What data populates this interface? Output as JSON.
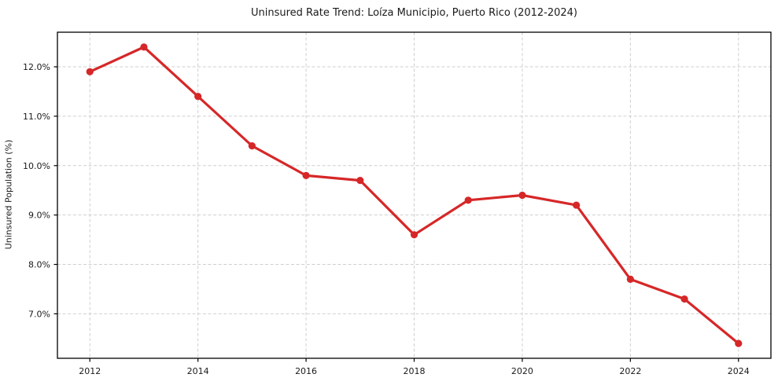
{
  "figure": {
    "background_color": "#ffffff"
  },
  "chart_data": {
    "type": "line",
    "title": "Uninsured Rate Trend: Loíza Municipio, Puerto Rico (2012-2024)",
    "xlabel": "",
    "ylabel": "Uninsured Population (%)",
    "x": [
      2012,
      2013,
      2014,
      2015,
      2016,
      2017,
      2018,
      2019,
      2020,
      2021,
      2022,
      2023,
      2024
    ],
    "values": [
      11.9,
      12.4,
      11.4,
      10.4,
      9.8,
      9.7,
      8.6,
      9.3,
      9.4,
      9.2,
      7.7,
      7.3,
      6.4
    ],
    "xlim": [
      2011.4,
      2024.6
    ],
    "ylim": [
      6.1,
      12.7
    ],
    "xticks": {
      "values": [
        2012,
        2014,
        2016,
        2018,
        2020,
        2022,
        2024
      ],
      "labels": [
        "2012",
        "2014",
        "2016",
        "2018",
        "2020",
        "2022",
        "2024"
      ]
    },
    "yticks": {
      "values": [
        7,
        8,
        9,
        10,
        11,
        12
      ],
      "labels": [
        "7.0%",
        "8.0%",
        "9.0%",
        "10.0%",
        "11.0%",
        "12.0%"
      ]
    },
    "grid": true,
    "grid_style": "dashed",
    "legend": "none",
    "marker": "circle",
    "colors": {
      "line": "#d62728",
      "marker": "#d62728",
      "grid": "#cfcfcf",
      "spine": "#000000",
      "text": "#1a1a1a"
    }
  }
}
